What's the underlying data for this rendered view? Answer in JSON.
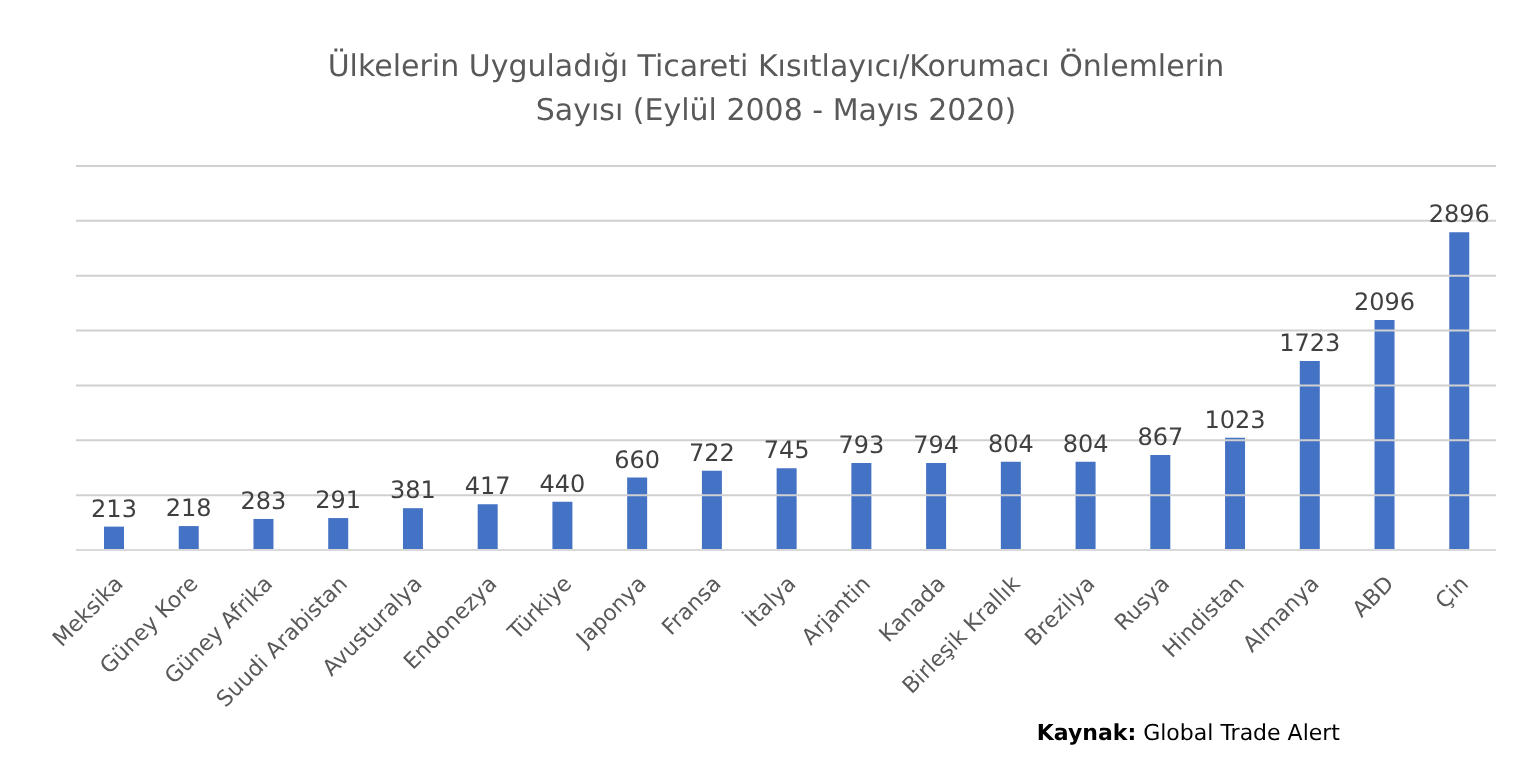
{
  "chart_data": {
    "type": "bar",
    "title": "Ülkelerin Uyguladığı Ticareti Kısıtlayıcı/Korumacı Önlemlerin Sayısı (Eylül 2008 - Mayıs 2020)",
    "categories": [
      "Meksika",
      "Güney Kore",
      "Güney Afrika",
      "Suudi Arabistan",
      "Avusturalya",
      "Endonezya",
      "Türkiye",
      "Japonya",
      "Fransa",
      "İtalya",
      "Arjantin",
      "Kanada",
      "Birleşik Krallık",
      "Brezilya",
      "Rusya",
      "Hindistan",
      "Almanya",
      "ABD",
      "Çin"
    ],
    "values": [
      213,
      218,
      283,
      291,
      381,
      417,
      440,
      660,
      722,
      745,
      793,
      794,
      804,
      804,
      867,
      1023,
      1723,
      2096,
      2896
    ],
    "color": "#4472c4",
    "ylim": [
      0,
      3500
    ],
    "yticks": [
      {
        "value": 0,
        "label": null
      },
      {
        "value": 500,
        "label": null
      },
      {
        "value": 1000,
        "label": null
      },
      {
        "value": 1500,
        "label": null
      },
      {
        "value": 2000,
        "label": null
      },
      {
        "value": 2500,
        "label": null
      },
      {
        "value": 3000,
        "label": null
      },
      {
        "value": 3500,
        "label": null
      }
    ],
    "grid": "y",
    "tick_labels": "x",
    "data_labels": true,
    "legend": false,
    "annotations": [
      "Kaynak: Global Trade Alert"
    ]
  }
}
